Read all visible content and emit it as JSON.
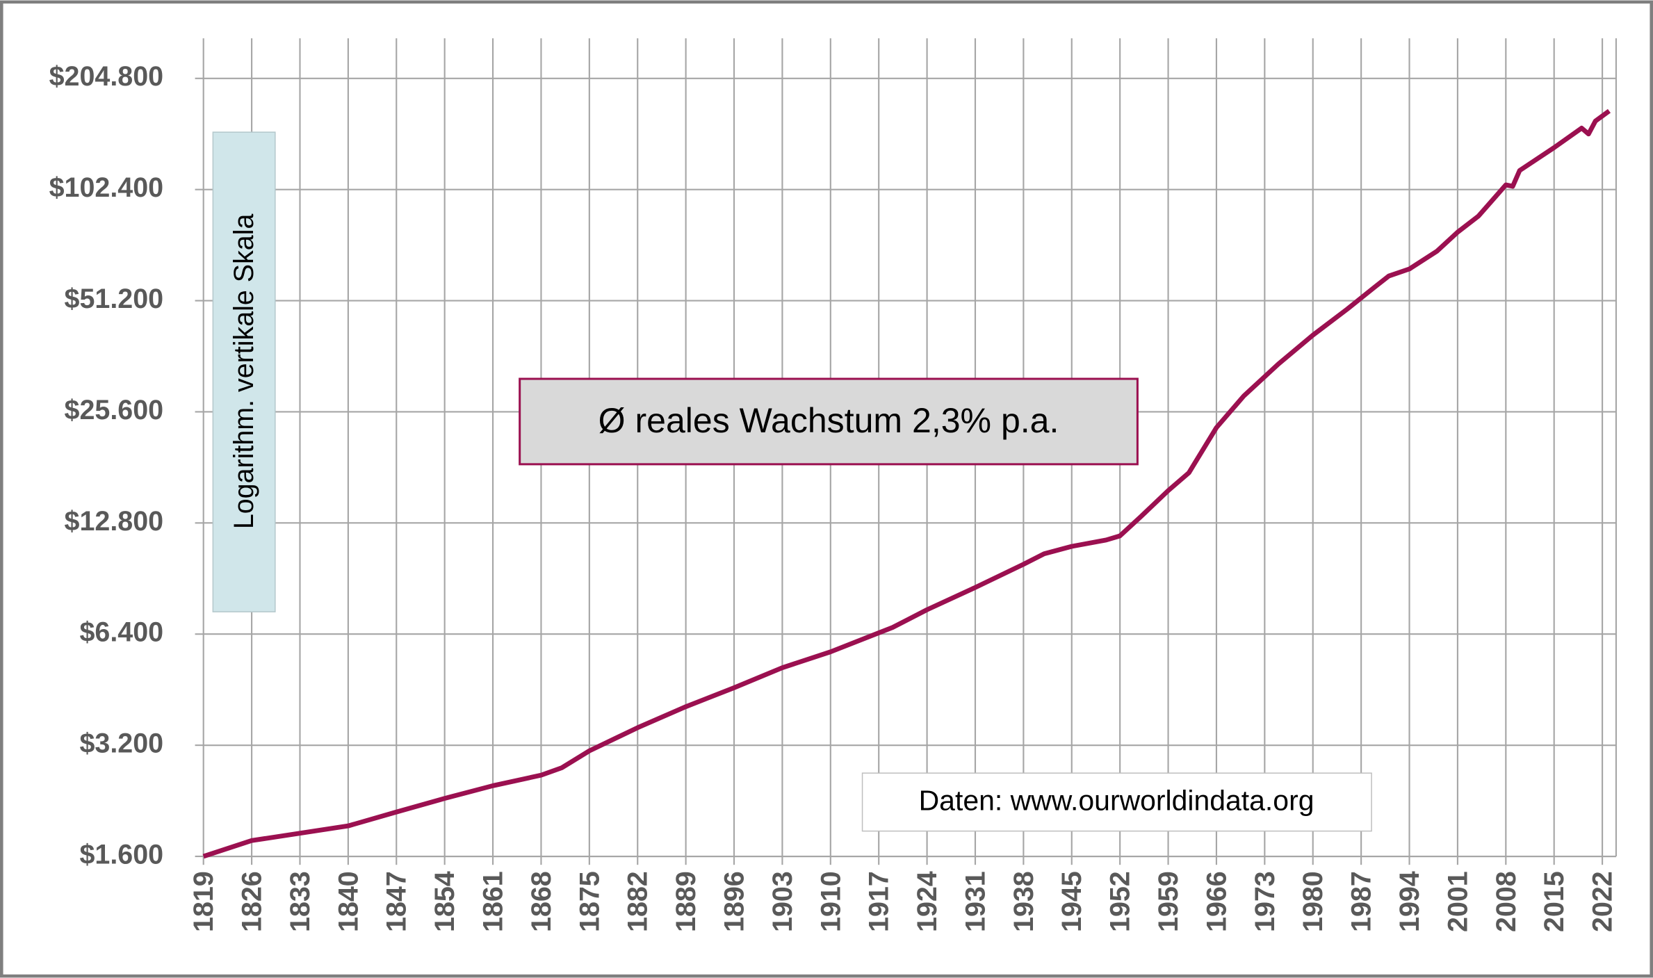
{
  "chart_data": {
    "type": "line",
    "x": [
      1819,
      1826,
      1840,
      1847,
      1854,
      1861,
      1868,
      1871,
      1875,
      1882,
      1889,
      1896,
      1903,
      1910,
      1917,
      1919,
      1924,
      1931,
      1938,
      1941,
      1945,
      1950,
      1952,
      1955,
      1959,
      1962,
      1966,
      1970,
      1975,
      1980,
      1985,
      1989,
      1991,
      1994,
      1998,
      2001,
      2004,
      2008,
      2009,
      2010,
      2015,
      2019,
      2020,
      2021,
      2023
    ],
    "values": [
      1600,
      1766,
      1935,
      2110,
      2297,
      2486,
      2655,
      2780,
      3090,
      3570,
      4070,
      4580,
      5190,
      5730,
      6450,
      6670,
      7450,
      8560,
      9890,
      10560,
      11060,
      11510,
      11810,
      13300,
      15660,
      17500,
      23200,
      28300,
      34500,
      41300,
      48600,
      55800,
      59700,
      62400,
      69700,
      78500,
      86700,
      105400,
      104500,
      115300,
      133000,
      150200,
      144800,
      157000,
      167200
    ],
    "color": "#9b1050",
    "log_y": true,
    "grid": true,
    "xlim": [
      1819,
      2024
    ],
    "xticks": [
      1819,
      1826,
      1833,
      1840,
      1847,
      1854,
      1861,
      1868,
      1875,
      1882,
      1889,
      1896,
      1903,
      1910,
      1917,
      1924,
      1931,
      1938,
      1945,
      1952,
      1959,
      1966,
      1973,
      1980,
      1987,
      1994,
      2001,
      2008,
      2015,
      2022
    ],
    "ylim": [
      1600,
      204800
    ],
    "yticks": [
      {
        "value": 1600,
        "label": "$1.600"
      },
      {
        "value": 3200,
        "label": "$3.200"
      },
      {
        "value": 6400,
        "label": "$6.400"
      },
      {
        "value": 12800,
        "label": "$12.800"
      },
      {
        "value": 25600,
        "label": "$25.600"
      },
      {
        "value": 51200,
        "label": "$51.200"
      },
      {
        "value": 102400,
        "label": "$102.400"
      },
      {
        "value": 204800,
        "label": "$204.800"
      }
    ],
    "annotations": [
      "Logarithm. vertikale Skala",
      "Ø reales Wachstum 2,3% p.a.",
      "Daten: www.ourworldindata.org"
    ]
  }
}
